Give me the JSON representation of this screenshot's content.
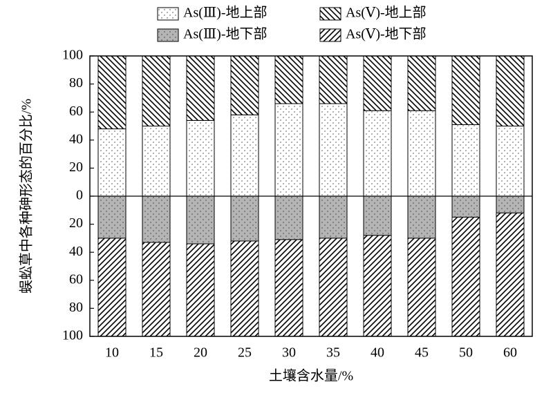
{
  "chart_data": {
    "type": "bar",
    "x_label": "土壤含水量/%",
    "y_label": "蜈蚣草中各种砷形态的百分比/%",
    "categories": [
      "10",
      "15",
      "20",
      "25",
      "30",
      "35",
      "40",
      "45",
      "50",
      "60"
    ],
    "series": [
      {
        "name": "As(Ⅲ)-地上部",
        "color": "#ffffff",
        "pattern": "dots",
        "values": [
          48,
          50,
          54,
          58,
          66,
          66,
          61,
          61,
          51,
          50
        ]
      },
      {
        "name": "As(Ⅴ)-地上部",
        "color": "#ffffff",
        "pattern": "hatch-back",
        "values": [
          52,
          50,
          46,
          42,
          34,
          34,
          39,
          39,
          49,
          50
        ]
      },
      {
        "name": "As(Ⅲ)-地下部",
        "color": "#b4b4b4",
        "pattern": "dots",
        "values": [
          -30,
          -33,
          -34,
          -32,
          -31,
          -30,
          -28,
          -30,
          -15,
          -12
        ]
      },
      {
        "name": "As(Ⅴ)-地下部",
        "color": "#ffffff",
        "pattern": "hatch-forward",
        "values": [
          -70,
          -67,
          -66,
          -68,
          -69,
          -70,
          -72,
          -70,
          -85,
          -88
        ]
      }
    ],
    "ylim": [
      -100,
      100
    ],
    "yticks": [
      100,
      80,
      60,
      40,
      20,
      0,
      {
        "value": -20,
        "label": "20"
      },
      {
        "value": -40,
        "label": "40"
      },
      {
        "value": -60,
        "label": "60"
      },
      {
        "value": -80,
        "label": "80"
      },
      {
        "value": -100,
        "label": "100"
      }
    ],
    "grid": false,
    "zero_line": true
  }
}
